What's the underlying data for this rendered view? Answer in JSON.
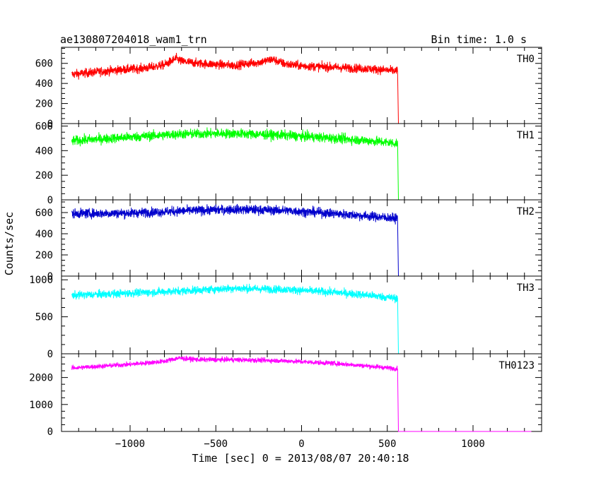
{
  "chart_data": {
    "type": "line",
    "title": "ae130807204018_wam1_trn",
    "subtitle": "Bin time: 1.0 s",
    "xlabel": "Time [sec] 0 = 2013/08/07 20:40:18",
    "ylabel": "Counts/sec",
    "xlim": [
      -1400,
      1400
    ],
    "x_tick_labels": [
      "−1000",
      "−500",
      "0",
      "500",
      "1000"
    ],
    "x_ticks": [
      -1000,
      -500,
      0,
      500,
      1000
    ],
    "data_end_x": 560,
    "x_start": -1340,
    "x_end": 1340,
    "panels": [
      {
        "name": "TH0",
        "color": "#ff0000",
        "ylim": [
          0,
          760
        ],
        "yticks": [
          0,
          200,
          400,
          600
        ],
        "noise": 45,
        "profile": [
          [
            -1340,
            490
          ],
          [
            -1100,
            530
          ],
          [
            -900,
            555
          ],
          [
            -800,
            585
          ],
          [
            -730,
            650
          ],
          [
            -700,
            620
          ],
          [
            -600,
            600
          ],
          [
            -400,
            580
          ],
          [
            -250,
            610
          ],
          [
            -170,
            640
          ],
          [
            -100,
            595
          ],
          [
            0,
            575
          ],
          [
            200,
            560
          ],
          [
            400,
            545
          ],
          [
            550,
            525
          ]
        ]
      },
      {
        "name": "TH1",
        "color": "#00ff00",
        "ylim": [
          0,
          620
        ],
        "yticks": [
          0,
          200,
          400,
          600
        ],
        "noise": 40,
        "profile": [
          [
            -1340,
            480
          ],
          [
            -1000,
            510
          ],
          [
            -700,
            535
          ],
          [
            -400,
            540
          ],
          [
            -100,
            525
          ],
          [
            200,
            500
          ],
          [
            400,
            480
          ],
          [
            550,
            460
          ]
        ]
      },
      {
        "name": "TH2",
        "color": "#0000cc",
        "ylim": [
          0,
          720
        ],
        "yticks": [
          0,
          200,
          400,
          600
        ],
        "noise": 45,
        "profile": [
          [
            -1340,
            590
          ],
          [
            -1000,
            595
          ],
          [
            -700,
            615
          ],
          [
            -400,
            630
          ],
          [
            -100,
            620
          ],
          [
            200,
            590
          ],
          [
            400,
            565
          ],
          [
            550,
            545
          ]
        ]
      },
      {
        "name": "TH3",
        "color": "#00ffff",
        "ylim": [
          0,
          1050
        ],
        "yticks": [
          0,
          500,
          1000
        ],
        "noise": 55,
        "profile": [
          [
            -1340,
            790
          ],
          [
            -1000,
            820
          ],
          [
            -700,
            850
          ],
          [
            -400,
            885
          ],
          [
            -100,
            870
          ],
          [
            200,
            830
          ],
          [
            400,
            790
          ],
          [
            550,
            750
          ]
        ]
      },
      {
        "name": "TH0123",
        "color": "#ff00ff",
        "ylim": [
          0,
          2880
        ],
        "yticks": [
          0,
          1000,
          2000
        ],
        "noise": 90,
        "profile": [
          [
            -1340,
            2350
          ],
          [
            -1000,
            2490
          ],
          [
            -800,
            2600
          ],
          [
            -720,
            2720
          ],
          [
            -600,
            2660
          ],
          [
            -400,
            2660
          ],
          [
            -100,
            2620
          ],
          [
            200,
            2520
          ],
          [
            400,
            2420
          ],
          [
            550,
            2330
          ]
        ]
      }
    ]
  }
}
